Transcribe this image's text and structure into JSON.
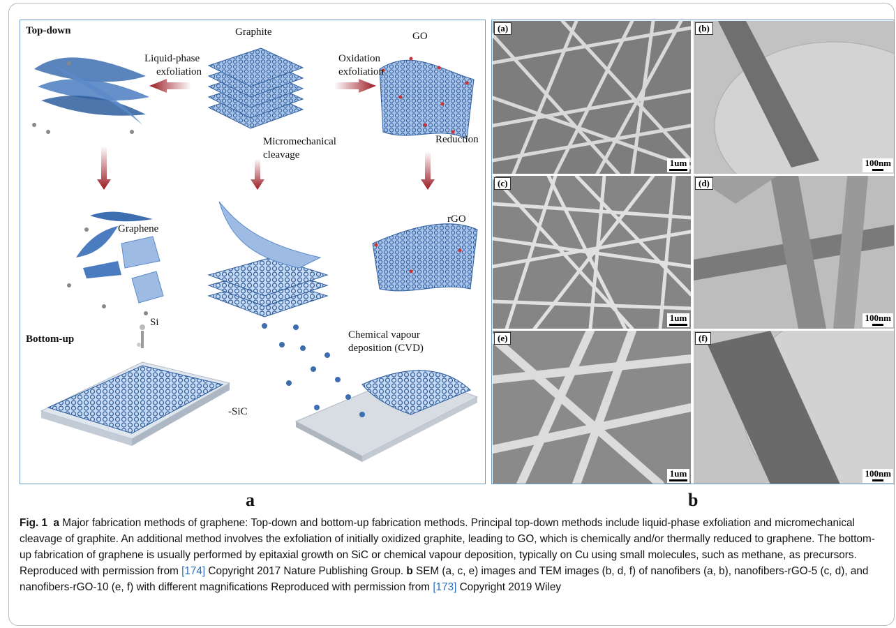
{
  "figure": {
    "panel_a": {
      "top_down_title": "Top-down",
      "bottom_up_title": "Bottom-up",
      "labels": {
        "graphite": "Graphite",
        "go": "GO",
        "liquid_phase": "Liquid-phase",
        "exfoliation_1": "exfoliation",
        "oxidation": "Oxidation",
        "exfoliation_2": "exfoliation",
        "micromechanical": "Micromechanical",
        "cleavage": "cleavage",
        "reduction": "Reduction",
        "graphene": "Graphene",
        "rgo": "rGO",
        "si": "Si",
        "sic": "SiC",
        "cvd_1": "Chemical vapour",
        "cvd_2": "deposition (CVD)"
      },
      "letter": "a",
      "colors": {
        "sheet": "#3d6fb0",
        "sheet_light": "#9ebbe3",
        "arrow": "#9b1b23",
        "frame": "#6a9cc7"
      }
    },
    "panel_b": {
      "letter": "b",
      "tiles": [
        {
          "tag": "(a)",
          "scale": "1um",
          "kind": "SEM"
        },
        {
          "tag": "(b)",
          "scale": "100nm",
          "kind": "TEM"
        },
        {
          "tag": "(c)",
          "scale": "1um",
          "kind": "SEM"
        },
        {
          "tag": "(d)",
          "scale": "100nm",
          "kind": "TEM"
        },
        {
          "tag": "(e)",
          "scale": "1um",
          "kind": "SEM"
        },
        {
          "tag": "(f)",
          "scale": "100nm",
          "kind": "TEM"
        }
      ]
    },
    "caption": {
      "fig_label": "Fig. 1",
      "a_label": "a",
      "a_text": " Major fabrication methods of graphene: Top-down and bottom-up fabrication methods. Principal top-down methods include liquid-phase exfoliation and micromechanical cleavage of graphite. An additional method involves the exfoliation of initially oxidized graphite, leading to GO, which is chemically and/or thermally reduced to graphene. The bottom-up fabrication of graphene is usually performed by epitaxial growth on SiC or chemical vapour deposition, typically on Cu using small molecules, such as methane, as precursors. Reproduced with permission from ",
      "ref_a": "[174]",
      "a_tail": " Copyright 2017 Nature Publishing Group. ",
      "b_label": "b",
      "b_text": " SEM (a, c, e) images and TEM images (b, d, f) of nanofibers (a, b), nanofibers-rGO-5 (c, d), and nanofibers-rGO-10 (e, f) with different magnifications Reproduced with permission from ",
      "ref_b": "[173]",
      "b_tail": " Copyright 2019 Wiley"
    }
  }
}
